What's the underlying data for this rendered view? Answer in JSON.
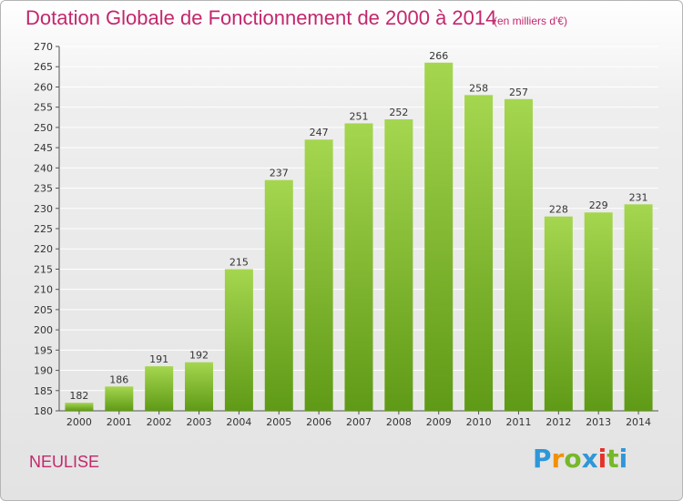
{
  "header": {
    "title": "Dotation Globale de Fonctionnement de 2000 à 2014",
    "unit_note": "(en milliers d'€)"
  },
  "footer": {
    "commune": "NEULISE",
    "brand": "Proxiti",
    "brand_letters": [
      "P",
      "r",
      "o",
      "x",
      "i",
      "t",
      "i"
    ]
  },
  "colors": {
    "title": "#c4276d",
    "bar_top": "#a5d64f",
    "bar_bottom": "#5f9a16",
    "grid": "#ffffff"
  },
  "chart_data": {
    "type": "bar",
    "title": "Dotation Globale de Fonctionnement de 2000 à 2014",
    "subtitle": "(en milliers d'€)",
    "categories": [
      "2000",
      "2001",
      "2002",
      "2003",
      "2004",
      "2005",
      "2006",
      "2007",
      "2008",
      "2009",
      "2010",
      "2011",
      "2012",
      "2013",
      "2014"
    ],
    "values": [
      182,
      186,
      191,
      192,
      215,
      237,
      247,
      251,
      252,
      266,
      258,
      257,
      228,
      229,
      231
    ],
    "xlabel": "",
    "ylabel": "",
    "ylim": [
      180,
      270
    ],
    "yticks": [
      180,
      185,
      190,
      195,
      200,
      205,
      210,
      215,
      220,
      225,
      230,
      235,
      240,
      245,
      250,
      255,
      260,
      265,
      270
    ],
    "grid": true,
    "data_labels": true,
    "legend": "none"
  }
}
